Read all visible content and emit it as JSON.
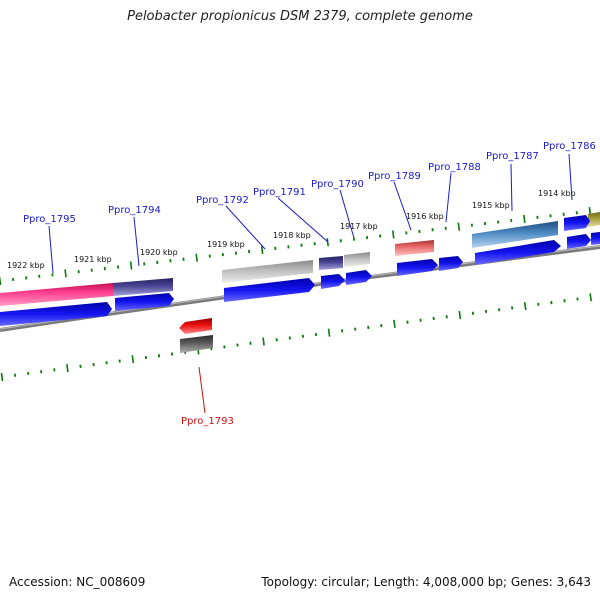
{
  "title": "Pelobacter propionicus DSM 2379, complete genome",
  "footer": {
    "accession": "Accession: NC_008609",
    "summary": "Topology: circular; Length: 4,008,000 bp; Genes: 3,643"
  },
  "colors": {
    "backbone": "#7a7a7a",
    "tick": "#0a7a0a",
    "cds": "#1010ee",
    "label_forward": "#1a1acc",
    "label_reverse": "#cc1111"
  },
  "scale_labels": [
    "1922 kbp",
    "1921 kbp",
    "1920 kbp",
    "1919 kbp",
    "1918 kbp",
    "1917 kbp",
    "1916 kbp",
    "1915 kbp",
    "1914 kbp"
  ],
  "gene_labels": [
    {
      "text": "Ppro_1795",
      "strand": "forward"
    },
    {
      "text": "Ppro_1794",
      "strand": "forward"
    },
    {
      "text": "Ppro_1792",
      "strand": "forward"
    },
    {
      "text": "Ppro_1791",
      "strand": "forward"
    },
    {
      "text": "Ppro_1790",
      "strand": "forward"
    },
    {
      "text": "Ppro_1789",
      "strand": "forward"
    },
    {
      "text": "Ppro_1788",
      "strand": "forward"
    },
    {
      "text": "Ppro_1787",
      "strand": "forward"
    },
    {
      "text": "Ppro_1786",
      "strand": "forward"
    },
    {
      "text": "Ppro_1793",
      "strand": "reverse"
    }
  ],
  "feature_colors": [
    "#ff3d8f",
    "#3e3a8a",
    "#b8b8b8",
    "#3e3a8a",
    "#b8b8b8",
    "#e86a6a",
    "#4a86c0",
    "#a89e3a",
    "#ee1111",
    "#5a5a5a"
  ]
}
